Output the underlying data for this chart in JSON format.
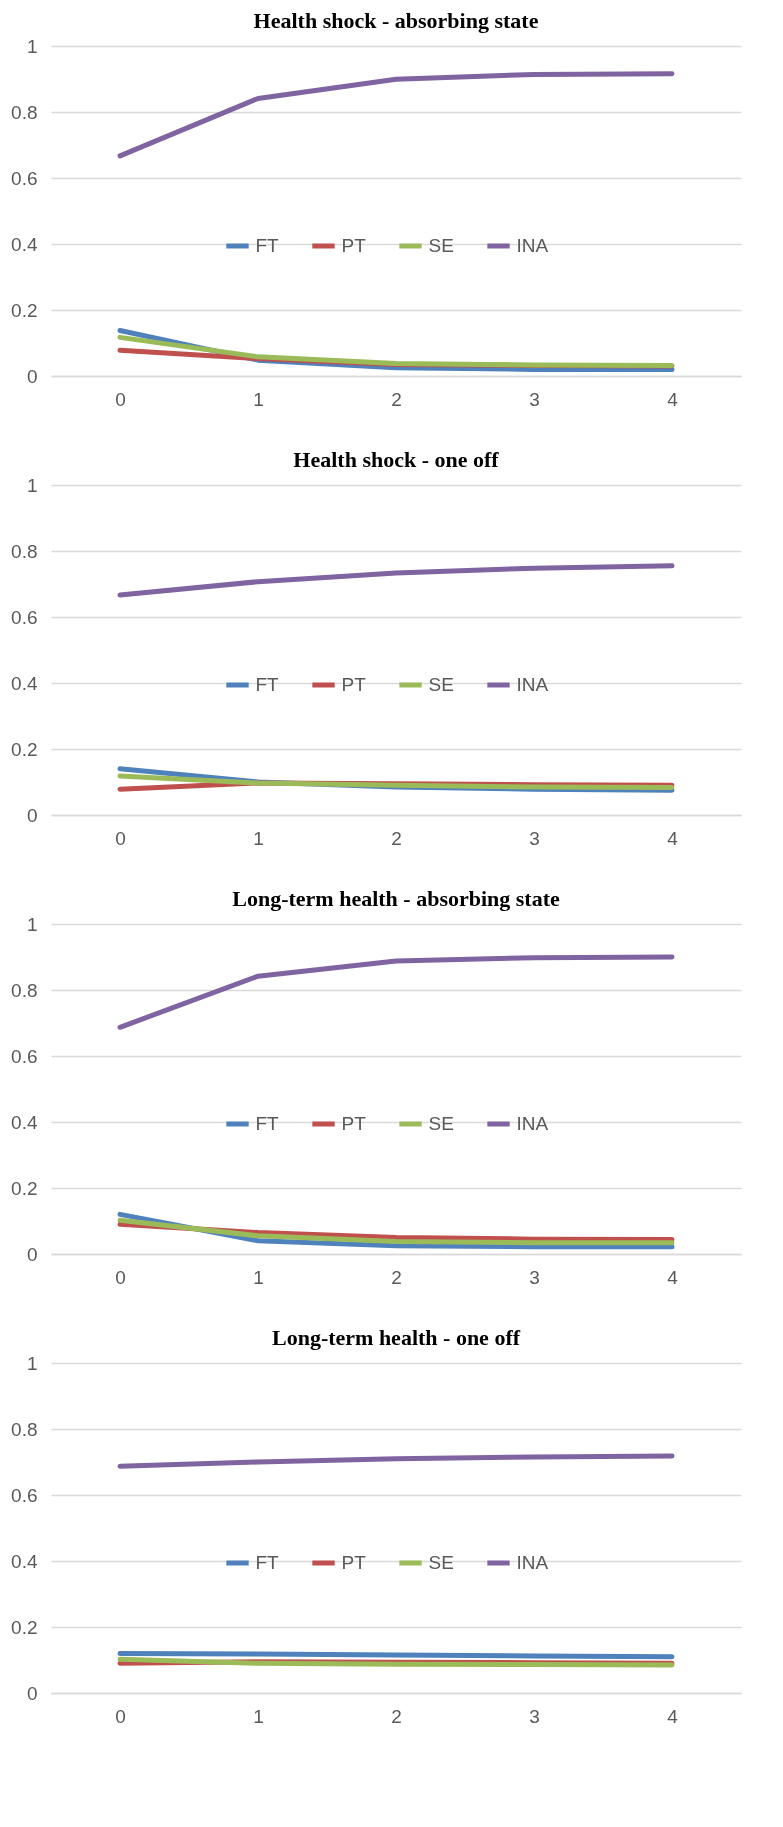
{
  "chart_data": [
    {
      "type": "line",
      "title": "Health shock - absorbing state",
      "categories": [
        "0",
        "1",
        "2",
        "3",
        "4"
      ],
      "ylim": [
        0,
        1
      ],
      "yticks": [
        0,
        0.2,
        0.4,
        0.6,
        0.8,
        1
      ],
      "grid": "y",
      "legend": "center",
      "marker": "none",
      "line_style": "solid",
      "series": [
        {
          "name": "FT",
          "color": "#4f81bd",
          "values": [
            0.138,
            0.048,
            0.025,
            0.02,
            0.02
          ]
        },
        {
          "name": "PT",
          "color": "#c0504d",
          "values": [
            0.078,
            0.053,
            0.035,
            0.032,
            0.03
          ]
        },
        {
          "name": "SE",
          "color": "#9bbb59",
          "values": [
            0.117,
            0.058,
            0.038,
            0.033,
            0.032
          ]
        },
        {
          "name": "INA",
          "color": "#8064a2",
          "values": [
            0.667,
            0.841,
            0.899,
            0.914,
            0.916
          ]
        }
      ]
    },
    {
      "type": "line",
      "title": "Health shock - one off",
      "categories": [
        "0",
        "1",
        "2",
        "3",
        "4"
      ],
      "ylim": [
        0,
        1
      ],
      "yticks": [
        0,
        0.2,
        0.4,
        0.6,
        0.8,
        1
      ],
      "grid": "y",
      "legend": "center",
      "marker": "none",
      "line_style": "solid",
      "series": [
        {
          "name": "FT",
          "color": "#4f81bd",
          "values": [
            0.14,
            0.1,
            0.085,
            0.078,
            0.075
          ]
        },
        {
          "name": "PT",
          "color": "#c0504d",
          "values": [
            0.078,
            0.097,
            0.095,
            0.092,
            0.09
          ]
        },
        {
          "name": "SE",
          "color": "#9bbb59",
          "values": [
            0.118,
            0.097,
            0.09,
            0.085,
            0.083
          ]
        },
        {
          "name": "INA",
          "color": "#8064a2",
          "values": [
            0.667,
            0.707,
            0.733,
            0.748,
            0.755
          ]
        }
      ]
    },
    {
      "type": "line",
      "title": "Long-term health - absorbing state",
      "categories": [
        "0",
        "1",
        "2",
        "3",
        "4"
      ],
      "ylim": [
        0,
        1
      ],
      "yticks": [
        0,
        0.2,
        0.4,
        0.6,
        0.8,
        1
      ],
      "grid": "y",
      "legend": "center",
      "marker": "none",
      "line_style": "solid",
      "series": [
        {
          "name": "FT",
          "color": "#4f81bd",
          "values": [
            0.12,
            0.04,
            0.025,
            0.022,
            0.022
          ]
        },
        {
          "name": "PT",
          "color": "#c0504d",
          "values": [
            0.09,
            0.065,
            0.05,
            0.045,
            0.044
          ]
        },
        {
          "name": "SE",
          "color": "#9bbb59",
          "values": [
            0.102,
            0.055,
            0.038,
            0.034,
            0.034
          ]
        },
        {
          "name": "INA",
          "color": "#8064a2",
          "values": [
            0.687,
            0.842,
            0.888,
            0.898,
            0.9
          ]
        }
      ]
    },
    {
      "type": "line",
      "title": "Long-term health - one off",
      "categories": [
        "0",
        "1",
        "2",
        "3",
        "4"
      ],
      "ylim": [
        0,
        1
      ],
      "yticks": [
        0,
        0.2,
        0.4,
        0.6,
        0.8,
        1
      ],
      "grid": "y",
      "legend": "center",
      "marker": "none",
      "line_style": "solid",
      "series": [
        {
          "name": "FT",
          "color": "#4f81bd",
          "values": [
            0.12,
            0.118,
            0.115,
            0.112,
            0.11
          ]
        },
        {
          "name": "PT",
          "color": "#c0504d",
          "values": [
            0.09,
            0.095,
            0.093,
            0.092,
            0.09
          ]
        },
        {
          "name": "SE",
          "color": "#9bbb59",
          "values": [
            0.102,
            0.09,
            0.087,
            0.086,
            0.085
          ]
        },
        {
          "name": "INA",
          "color": "#8064a2",
          "values": [
            0.687,
            0.7,
            0.71,
            0.715,
            0.718
          ]
        }
      ]
    }
  ]
}
